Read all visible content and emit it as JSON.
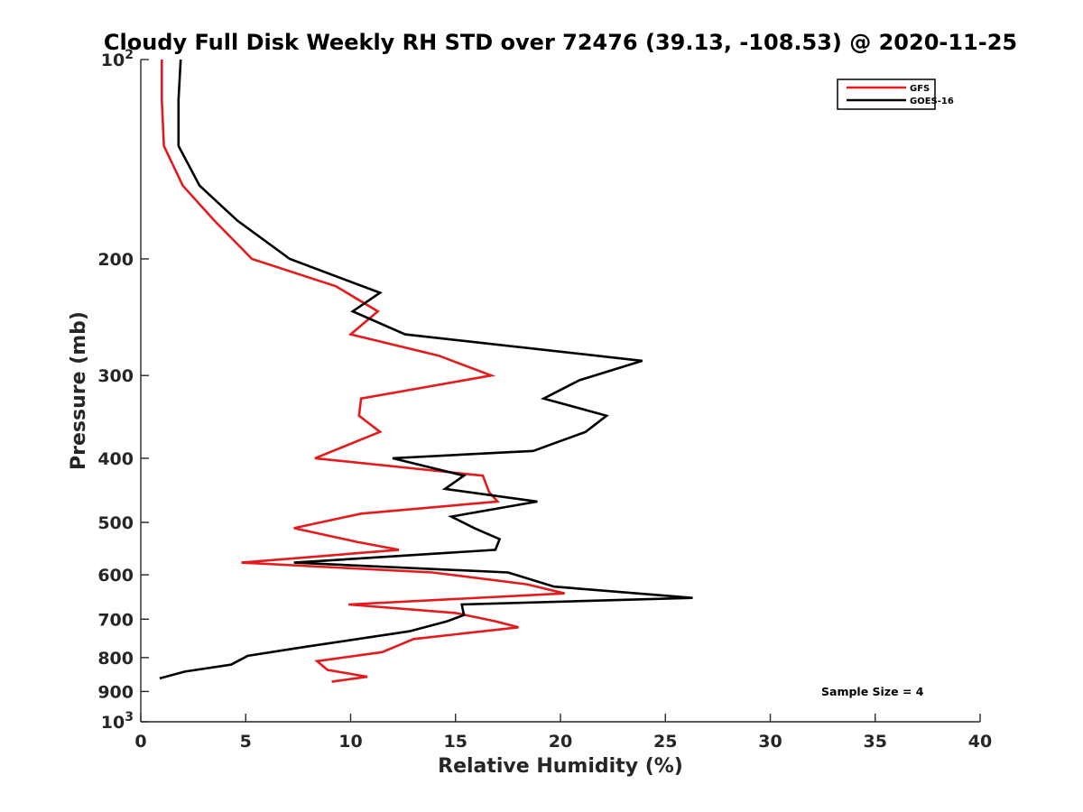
{
  "chart_data": {
    "type": "line",
    "title": "Cloudy Full Disk Weekly RH STD over 72476 (39.13, -108.53) @ 2020-11-25",
    "xlabel": "Relative Humidity (%)",
    "ylabel": "Pressure (mb)",
    "xlim": [
      0,
      40
    ],
    "ylim": [
      100,
      1000
    ],
    "y_scale": "log",
    "y_reversed": true,
    "grid": false,
    "legend_position": "top-right",
    "x_ticks": [
      {
        "value": 0,
        "label": "0"
      },
      {
        "value": 5,
        "label": "5"
      },
      {
        "value": 10,
        "label": "10"
      },
      {
        "value": 15,
        "label": "15"
      },
      {
        "value": 20,
        "label": "20"
      },
      {
        "value": 25,
        "label": "25"
      },
      {
        "value": 30,
        "label": "30"
      },
      {
        "value": 35,
        "label": "35"
      },
      {
        "value": 40,
        "label": "40"
      }
    ],
    "y_ticks": [
      {
        "value": 100,
        "label": "10",
        "exp": "2"
      },
      {
        "value": 200,
        "label": "200"
      },
      {
        "value": 300,
        "label": "300"
      },
      {
        "value": 400,
        "label": "400"
      },
      {
        "value": 500,
        "label": "500"
      },
      {
        "value": 600,
        "label": "600"
      },
      {
        "value": 700,
        "label": "700"
      },
      {
        "value": 800,
        "label": "800"
      },
      {
        "value": 900,
        "label": "900"
      },
      {
        "value": 1000,
        "label": "10",
        "exp": "3"
      }
    ],
    "series": [
      {
        "name": "GFS",
        "color": "#e41a1c",
        "points": [
          [
            1.0,
            100
          ],
          [
            1.0,
            115
          ],
          [
            1.1,
            135
          ],
          [
            2.0,
            155
          ],
          [
            3.5,
            175
          ],
          [
            5.3,
            200
          ],
          [
            9.3,
            220
          ],
          [
            11.3,
            240
          ],
          [
            10.0,
            260
          ],
          [
            14.2,
            280
          ],
          [
            16.7,
            300
          ],
          [
            10.5,
            325
          ],
          [
            10.4,
            345
          ],
          [
            11.4,
            365
          ],
          [
            8.3,
            400
          ],
          [
            16.3,
            425
          ],
          [
            16.6,
            450
          ],
          [
            17.0,
            465
          ],
          [
            10.5,
            485
          ],
          [
            7.3,
            510
          ],
          [
            10.3,
            535
          ],
          [
            12.3,
            550
          ],
          [
            4.8,
            575
          ],
          [
            13.9,
            595
          ],
          [
            18.4,
            620
          ],
          [
            20.2,
            640
          ],
          [
            9.9,
            665
          ],
          [
            15.0,
            685
          ],
          [
            16.9,
            705
          ],
          [
            18.0,
            720
          ],
          [
            13.0,
            750
          ],
          [
            11.5,
            785
          ],
          [
            8.4,
            810
          ],
          [
            8.9,
            835
          ],
          [
            10.8,
            855
          ],
          [
            9.1,
            870
          ]
        ]
      },
      {
        "name": "GOES-16",
        "color": "#000000",
        "points": [
          [
            1.9,
            100
          ],
          [
            1.8,
            115
          ],
          [
            1.8,
            135
          ],
          [
            2.8,
            155
          ],
          [
            4.6,
            175
          ],
          [
            7.1,
            200
          ],
          [
            11.4,
            225
          ],
          [
            10.1,
            240
          ],
          [
            12.6,
            260
          ],
          [
            23.9,
            285
          ],
          [
            20.9,
            305
          ],
          [
            19.2,
            325
          ],
          [
            22.2,
            345
          ],
          [
            21.2,
            365
          ],
          [
            18.7,
            390
          ],
          [
            12.0,
            400
          ],
          [
            15.4,
            425
          ],
          [
            14.5,
            445
          ],
          [
            18.9,
            465
          ],
          [
            14.8,
            490
          ],
          [
            15.9,
            510
          ],
          [
            17.1,
            530
          ],
          [
            16.9,
            550
          ],
          [
            7.3,
            575
          ],
          [
            17.5,
            595
          ],
          [
            19.7,
            625
          ],
          [
            26.3,
            650
          ],
          [
            15.3,
            665
          ],
          [
            15.4,
            690
          ],
          [
            14.6,
            705
          ],
          [
            12.8,
            730
          ],
          [
            7.9,
            770
          ],
          [
            5.1,
            795
          ],
          [
            4.3,
            820
          ],
          [
            2.1,
            840
          ],
          [
            0.9,
            860
          ]
        ]
      }
    ],
    "annotations": [
      "Sample Size = 4"
    ]
  }
}
